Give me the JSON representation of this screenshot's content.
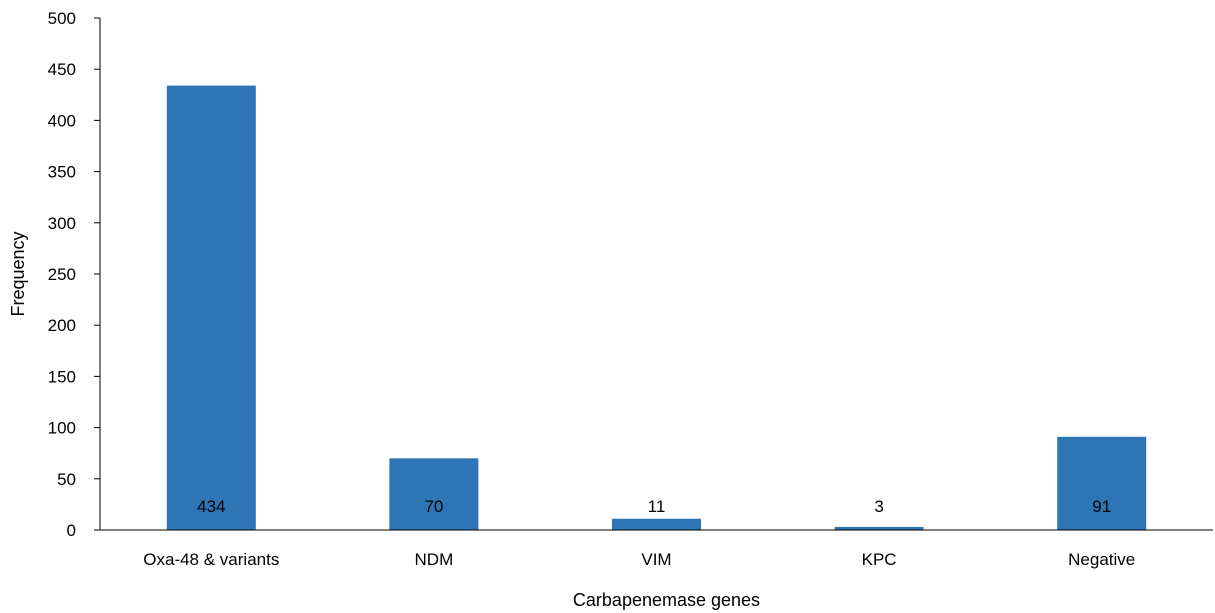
{
  "chart_data": {
    "type": "bar",
    "categories": [
      "Oxa-48 & variants",
      "NDM",
      "VIM",
      "KPC",
      "Negative"
    ],
    "values": [
      434,
      70,
      11,
      3,
      91
    ],
    "data_labels": [
      "434",
      "70",
      "11",
      "3",
      "91"
    ],
    "xlabel": "Carbapenemase genes",
    "ylabel": "Frequency",
    "ylim": [
      0,
      500
    ],
    "yticks": [
      "0",
      "50",
      "100",
      "150",
      "200",
      "250",
      "300",
      "350",
      "400",
      "450",
      "500"
    ],
    "grid": false,
    "legend": "none",
    "bar_color": "#2E75B6"
  }
}
